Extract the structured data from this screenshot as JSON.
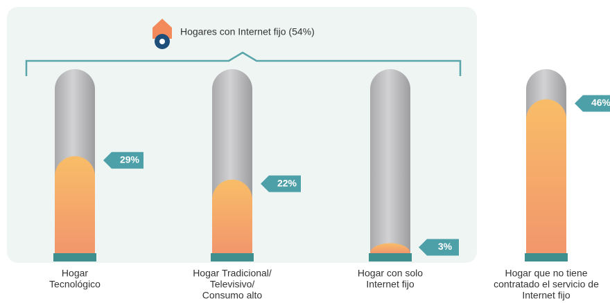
{
  "chart_data": {
    "type": "bar",
    "annotation": "Hogares con Internet fijo (54%)",
    "categories": [
      [
        "Hogar",
        "Tecnológico"
      ],
      [
        "Hogar Tradicional/",
        "Televisivo/",
        "Consumo alto"
      ],
      [
        "Hogar con solo",
        "Internet fijo"
      ],
      [
        "Hogar que no tiene",
        "contratado el servicio de",
        "Internet fijo"
      ]
    ],
    "values": [
      29,
      22,
      3,
      46
    ],
    "value_labels": [
      "29%",
      "22%",
      "3%",
      "46%"
    ],
    "color": "#f5a86a",
    "ylim": [
      0,
      55
    ]
  }
}
